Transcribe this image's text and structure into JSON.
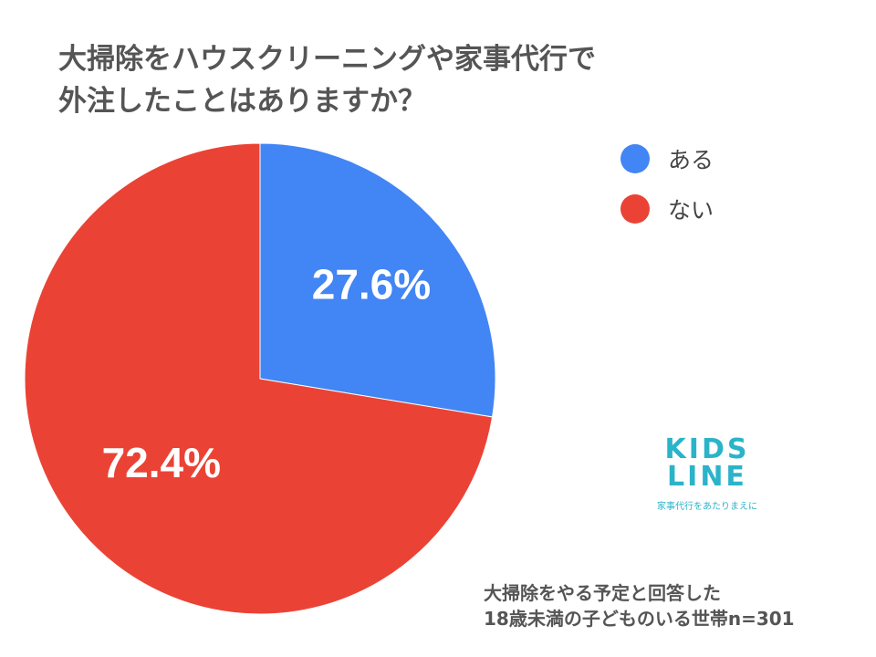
{
  "title_lines": [
    "大掃除をハウスクリーニングや家事代行で",
    "外注したことはありますか？"
  ],
  "chart_data": {
    "type": "pie",
    "title": "大掃除をハウスクリーニングや家事代行で外注したことはありますか？",
    "categories": [
      "ある",
      "ない"
    ],
    "values": [
      27.6,
      72.4
    ],
    "data_labels": [
      "27.6%",
      "72.4%"
    ],
    "colors": [
      "#4285f4",
      "#ea4335"
    ],
    "legend_position": "right"
  },
  "note_lines": [
    "大掃除をやる予定と回答した",
    "18歳未満の子どものいる世帯n=301"
  ],
  "logo": {
    "line1": "KIDS",
    "line2": "LINE",
    "tagline": "家事代行をあたりまえに"
  }
}
